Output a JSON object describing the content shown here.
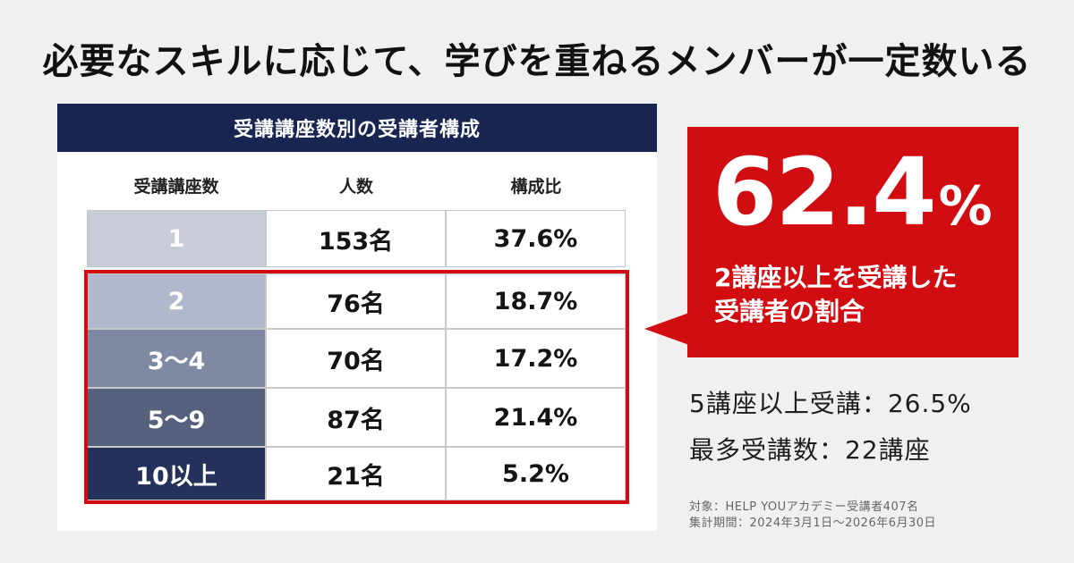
{
  "headline": "必要なスキルに応じて、学びを重ねるメンバーが一定数いる",
  "colors": {
    "navy": "#172550",
    "red": "#d10d12",
    "row_1": "#c8ccd9",
    "row_2": "#b2b8cb",
    "row_3_4": "#7f89a3",
    "row_5_9": "#56617d",
    "row_10": "#24315a"
  },
  "chart_data": {
    "type": "table",
    "title": "受講講座数別の受講者構成",
    "columns": [
      "受講講座数",
      "人数",
      "構成比"
    ],
    "rows": [
      {
        "courses": "1",
        "count": "153名",
        "share": "37.6%",
        "count_value": 153,
        "share_value": 37.6
      },
      {
        "courses": "2",
        "count": "76名",
        "share": "18.7%",
        "count_value": 76,
        "share_value": 18.7
      },
      {
        "courses": "3〜4",
        "count": "70名",
        "share": "17.2%",
        "count_value": 70,
        "share_value": 17.2
      },
      {
        "courses": "5〜9",
        "count": "87名",
        "share": "21.4%",
        "count_value": 87,
        "share_value": 21.4
      },
      {
        "courses": "10以上",
        "count": "21名",
        "share": "5.2%",
        "count_value": 21,
        "share_value": 5.2
      }
    ]
  },
  "callout": {
    "value": "62.4",
    "unit": "%",
    "line1": "2講座以上を受講した",
    "line2": "受講者の割合"
  },
  "stats": {
    "five_plus": "5講座以上受講：26.5%",
    "max_courses": "最多受講数：22講座"
  },
  "notes": {
    "target": "対象：HELP YOUアカデミー受講者407名",
    "period": "集計期間：2024年3月1日〜2026年6月30日"
  }
}
